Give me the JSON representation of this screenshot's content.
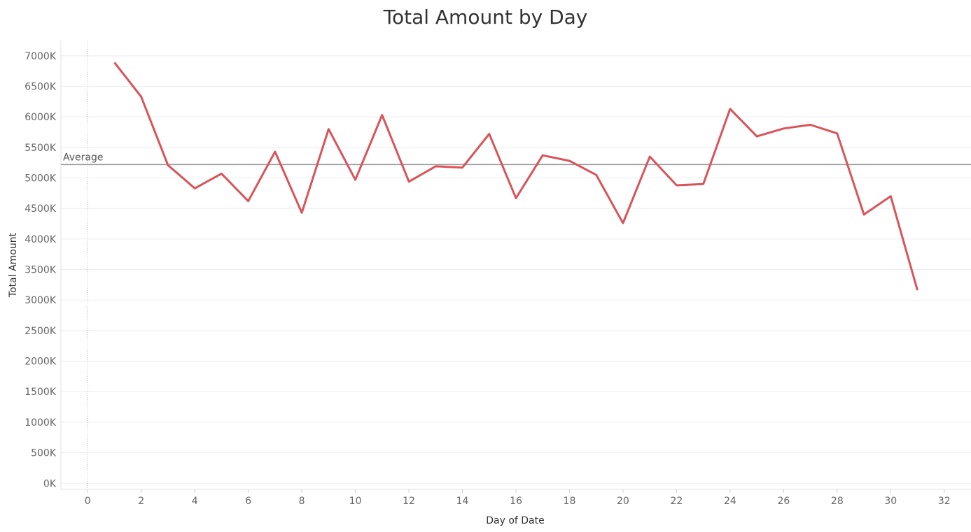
{
  "chart_data": {
    "type": "line",
    "title": "Total Amount by Day",
    "xlabel": "Day of Date",
    "ylabel": "Total Amount",
    "x_ticks": [
      0,
      2,
      4,
      6,
      8,
      10,
      12,
      14,
      16,
      18,
      20,
      22,
      24,
      26,
      28,
      30,
      32
    ],
    "xlim": [
      -1,
      33
    ],
    "y_ticks": [
      0,
      500,
      1000,
      1500,
      2000,
      2500,
      3000,
      3500,
      4000,
      4500,
      5000,
      5500,
      6000,
      6500,
      7000
    ],
    "y_tick_labels": [
      "0K",
      "500K",
      "1000K",
      "1500K",
      "2000K",
      "2500K",
      "3000K",
      "3500K",
      "4000K",
      "4500K",
      "5000K",
      "5500K",
      "6000K",
      "6500K",
      "7000K"
    ],
    "ylim": [
      -100,
      7250
    ],
    "y_unit": "K",
    "grid": "horizontal",
    "series": [
      {
        "color": "#d9545a",
        "x": [
          1,
          2,
          3,
          4,
          5,
          6,
          7,
          8,
          9,
          10,
          11,
          12,
          13,
          14,
          15,
          16,
          17,
          18,
          19,
          20,
          21,
          22,
          23,
          24,
          25,
          26,
          27,
          28,
          29,
          30,
          31
        ],
        "values": [
          6890,
          6330,
          5210,
          4830,
          5070,
          4620,
          5430,
          4430,
          5800,
          4970,
          6030,
          4940,
          5190,
          5170,
          5720,
          4670,
          5370,
          5280,
          5050,
          4260,
          5350,
          4880,
          4900,
          6130,
          5680,
          5810,
          5870,
          5730,
          4400,
          4700,
          3160
        ]
      }
    ],
    "reference_line": {
      "label": "Average",
      "value": 5220,
      "color": "#999999"
    }
  }
}
